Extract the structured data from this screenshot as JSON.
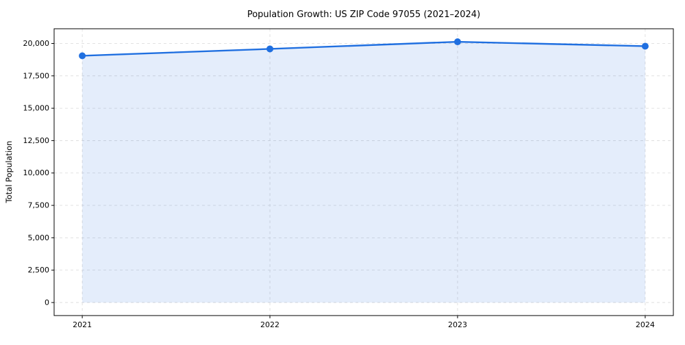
{
  "figure": {
    "background": "#ffffff",
    "text_color": "#000000",
    "spine_color": "#000000",
    "grid_color": "#d9d9d9"
  },
  "chart_data": {
    "type": "line",
    "title": "Population Growth: US ZIP Code 97055 (2021–2024)",
    "xlabel": "",
    "ylabel": "Total Population",
    "x": [
      2021,
      2022,
      2023,
      2024
    ],
    "x_tick_labels": [
      "2021",
      "2022",
      "2023",
      "2024"
    ],
    "series": [
      {
        "name": "Total Population",
        "values": [
          19050,
          19580,
          20130,
          19790
        ],
        "color": "#1f6fe0",
        "marker": "circle",
        "area_fill": true,
        "fill_opacity": 0.12
      }
    ],
    "y_ticks": {
      "values": [
        0,
        2500,
        5000,
        7500,
        10000,
        12500,
        15000,
        17500,
        20000
      ],
      "labels": [
        "0",
        "2,500",
        "5,000",
        "7,500",
        "10,000",
        "12,500",
        "15,000",
        "17,500",
        "20,000"
      ]
    },
    "ylim": [
      0,
      20130
    ],
    "axis_margin": 0.05,
    "grid": true,
    "grid_style": "dashed",
    "legend": "none"
  }
}
